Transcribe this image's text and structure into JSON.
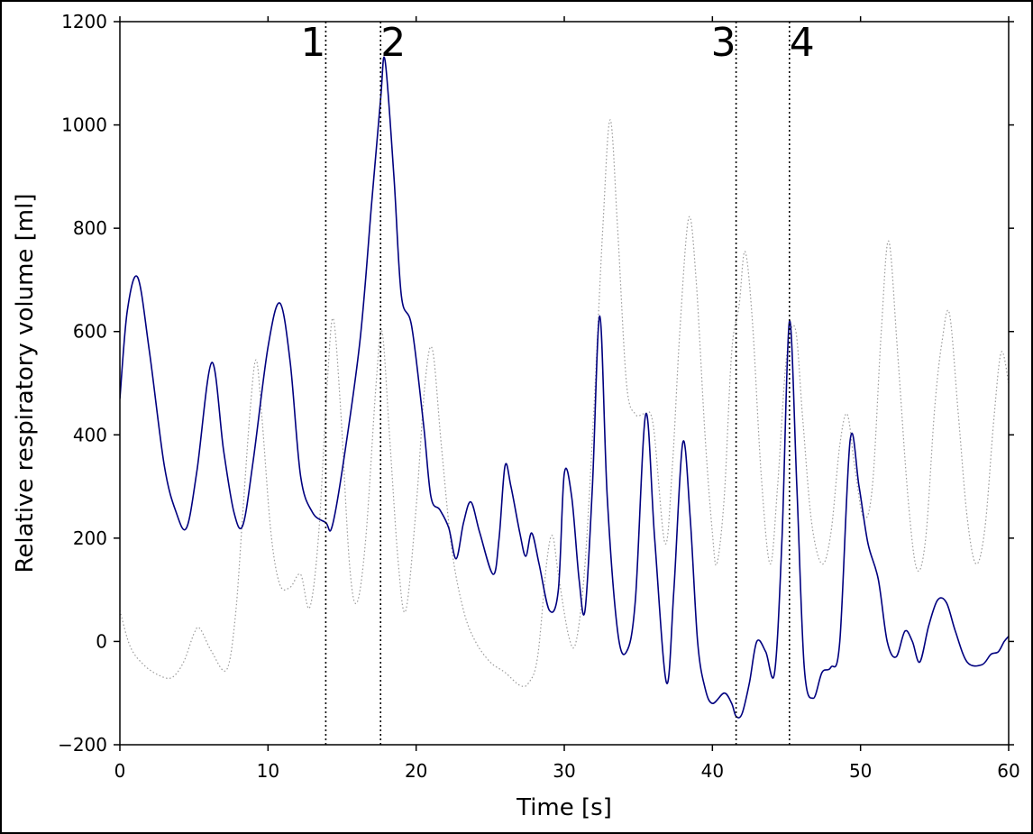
{
  "chart_data": {
    "type": "line",
    "title": "",
    "xlabel": "Time [s]",
    "ylabel": "Relative respiratory volume [ml]",
    "xlim": [
      0,
      60
    ],
    "ylim": [
      -200,
      1200
    ],
    "xticks": [
      0,
      10,
      20,
      30,
      40,
      50,
      60
    ],
    "yticks": [
      -200,
      0,
      200,
      400,
      600,
      800,
      1000,
      1200
    ],
    "xtick_labels": [
      "0",
      "10",
      "20",
      "30",
      "40",
      "50",
      "60"
    ],
    "ytick_labels": [
      "−200",
      "0",
      "200",
      "400",
      "600",
      "800",
      "1000",
      "1200"
    ],
    "grid": false,
    "legend": "none",
    "event_markers": [
      {
        "label": "1",
        "x": 13.9
      },
      {
        "label": "2",
        "x": 17.6
      },
      {
        "label": "3",
        "x": 41.6
      },
      {
        "label": "4",
        "x": 45.2
      }
    ],
    "series": [
      {
        "style": "solid",
        "color": "#00007f",
        "points": [
          [
            0.0,
            470
          ],
          [
            0.5,
            640
          ],
          [
            1.2,
            705
          ],
          [
            2.0,
            560
          ],
          [
            3.0,
            340
          ],
          [
            3.8,
            250
          ],
          [
            4.5,
            220
          ],
          [
            5.2,
            330
          ],
          [
            6.2,
            540
          ],
          [
            7.0,
            370
          ],
          [
            7.7,
            250
          ],
          [
            8.3,
            225
          ],
          [
            9.0,
            350
          ],
          [
            10.0,
            570
          ],
          [
            10.8,
            655
          ],
          [
            11.5,
            540
          ],
          [
            12.2,
            320
          ],
          [
            13.0,
            250
          ],
          [
            13.9,
            230
          ],
          [
            14.3,
            220
          ],
          [
            15.0,
            330
          ],
          [
            16.2,
            580
          ],
          [
            17.0,
            850
          ],
          [
            17.6,
            1050
          ],
          [
            17.9,
            1125
          ],
          [
            18.5,
            900
          ],
          [
            19.0,
            670
          ],
          [
            19.7,
            610
          ],
          [
            20.5,
            420
          ],
          [
            21.0,
            280
          ],
          [
            21.6,
            255
          ],
          [
            22.2,
            220
          ],
          [
            22.7,
            160
          ],
          [
            23.2,
            230
          ],
          [
            23.7,
            270
          ],
          [
            24.3,
            210
          ],
          [
            25.2,
            130
          ],
          [
            25.6,
            200
          ],
          [
            26.0,
            340
          ],
          [
            26.4,
            300
          ],
          [
            27.0,
            210
          ],
          [
            27.4,
            165
          ],
          [
            27.8,
            210
          ],
          [
            28.3,
            150
          ],
          [
            29.0,
            60
          ],
          [
            29.6,
            100
          ],
          [
            30.0,
            325
          ],
          [
            30.5,
            280
          ],
          [
            31.0,
            120
          ],
          [
            31.4,
            60
          ],
          [
            31.9,
            300
          ],
          [
            32.4,
            630
          ],
          [
            32.9,
            280
          ],
          [
            33.6,
            20
          ],
          [
            34.2,
            -20
          ],
          [
            34.8,
            80
          ],
          [
            35.5,
            440
          ],
          [
            36.1,
            200
          ],
          [
            36.9,
            -80
          ],
          [
            37.4,
            100
          ],
          [
            38.0,
            385
          ],
          [
            38.5,
            240
          ],
          [
            39.0,
            0
          ],
          [
            39.5,
            -90
          ],
          [
            40.0,
            -120
          ],
          [
            40.8,
            -100
          ],
          [
            41.3,
            -120
          ],
          [
            41.6,
            -145
          ],
          [
            42.0,
            -140
          ],
          [
            42.5,
            -80
          ],
          [
            43.0,
            0
          ],
          [
            43.6,
            -20
          ],
          [
            44.2,
            -60
          ],
          [
            44.7,
            200
          ],
          [
            45.2,
            620
          ],
          [
            45.7,
            300
          ],
          [
            46.2,
            -50
          ],
          [
            46.8,
            -110
          ],
          [
            47.4,
            -60
          ],
          [
            48.0,
            -50
          ],
          [
            48.6,
            0
          ],
          [
            49.3,
            390
          ],
          [
            49.9,
            300
          ],
          [
            50.5,
            190
          ],
          [
            51.2,
            120
          ],
          [
            51.8,
            0
          ],
          [
            52.4,
            -30
          ],
          [
            53.0,
            20
          ],
          [
            53.5,
            0
          ],
          [
            54.0,
            -40
          ],
          [
            54.6,
            30
          ],
          [
            55.2,
            80
          ],
          [
            55.8,
            75
          ],
          [
            56.4,
            20
          ],
          [
            57.2,
            -40
          ],
          [
            58.2,
            -45
          ],
          [
            58.8,
            -25
          ],
          [
            59.3,
            -20
          ],
          [
            59.7,
            0
          ],
          [
            60.0,
            10
          ]
        ]
      },
      {
        "style": "dotted",
        "color": "#9a9a9a",
        "points": [
          [
            0.0,
            60
          ],
          [
            0.7,
            -10
          ],
          [
            1.6,
            -45
          ],
          [
            2.6,
            -65
          ],
          [
            3.5,
            -70
          ],
          [
            4.3,
            -40
          ],
          [
            5.0,
            15
          ],
          [
            5.4,
            25
          ],
          [
            6.2,
            -20
          ],
          [
            7.2,
            -55
          ],
          [
            7.8,
            50
          ],
          [
            8.3,
            250
          ],
          [
            8.8,
            450
          ],
          [
            9.2,
            545
          ],
          [
            9.6,
            430
          ],
          [
            10.2,
            210
          ],
          [
            10.8,
            110
          ],
          [
            11.5,
            105
          ],
          [
            12.2,
            130
          ],
          [
            12.8,
            65
          ],
          [
            13.4,
            200
          ],
          [
            14.0,
            500
          ],
          [
            14.4,
            625
          ],
          [
            14.9,
            450
          ],
          [
            15.5,
            150
          ],
          [
            16.0,
            75
          ],
          [
            16.6,
            200
          ],
          [
            17.3,
            500
          ],
          [
            17.7,
            600
          ],
          [
            18.2,
            400
          ],
          [
            18.8,
            150
          ],
          [
            19.3,
            60
          ],
          [
            20.0,
            260
          ],
          [
            20.6,
            500
          ],
          [
            21.1,
            565
          ],
          [
            21.7,
            380
          ],
          [
            22.4,
            180
          ],
          [
            23.2,
            60
          ],
          [
            24.0,
            0
          ],
          [
            25.0,
            -40
          ],
          [
            26.0,
            -60
          ],
          [
            27.0,
            -85
          ],
          [
            27.6,
            -80
          ],
          [
            28.2,
            -30
          ],
          [
            28.8,
            150
          ],
          [
            29.2,
            205
          ],
          [
            29.6,
            130
          ],
          [
            30.3,
            10
          ],
          [
            30.8,
            0
          ],
          [
            31.4,
            150
          ],
          [
            32.0,
            450
          ],
          [
            32.6,
            800
          ],
          [
            33.1,
            1010
          ],
          [
            33.6,
            800
          ],
          [
            34.2,
            500
          ],
          [
            34.8,
            440
          ],
          [
            35.4,
            440
          ],
          [
            36.0,
            420
          ],
          [
            36.8,
            190
          ],
          [
            37.3,
            340
          ],
          [
            37.8,
            600
          ],
          [
            38.4,
            820
          ],
          [
            38.9,
            700
          ],
          [
            39.5,
            400
          ],
          [
            40.0,
            210
          ],
          [
            40.3,
            150
          ],
          [
            40.8,
            280
          ],
          [
            41.3,
            560
          ],
          [
            41.8,
            650
          ],
          [
            42.2,
            755
          ],
          [
            42.7,
            620
          ],
          [
            43.3,
            320
          ],
          [
            43.9,
            150
          ],
          [
            44.4,
            300
          ],
          [
            45.0,
            550
          ],
          [
            45.6,
            605
          ],
          [
            46.1,
            430
          ],
          [
            46.7,
            230
          ],
          [
            47.4,
            150
          ],
          [
            48.0,
            210
          ],
          [
            48.6,
            380
          ],
          [
            49.1,
            440
          ],
          [
            49.6,
            340
          ],
          [
            50.2,
            240
          ],
          [
            50.8,
            300
          ],
          [
            51.4,
            600
          ],
          [
            51.9,
            775
          ],
          [
            52.5,
            560
          ],
          [
            53.2,
            280
          ],
          [
            53.8,
            140
          ],
          [
            54.4,
            200
          ],
          [
            55.0,
            450
          ],
          [
            55.5,
            580
          ],
          [
            56.0,
            635
          ],
          [
            56.6,
            440
          ],
          [
            57.2,
            240
          ],
          [
            57.8,
            150
          ],
          [
            58.4,
            220
          ],
          [
            59.0,
            430
          ],
          [
            59.5,
            560
          ],
          [
            60.0,
            500
          ]
        ]
      }
    ]
  }
}
